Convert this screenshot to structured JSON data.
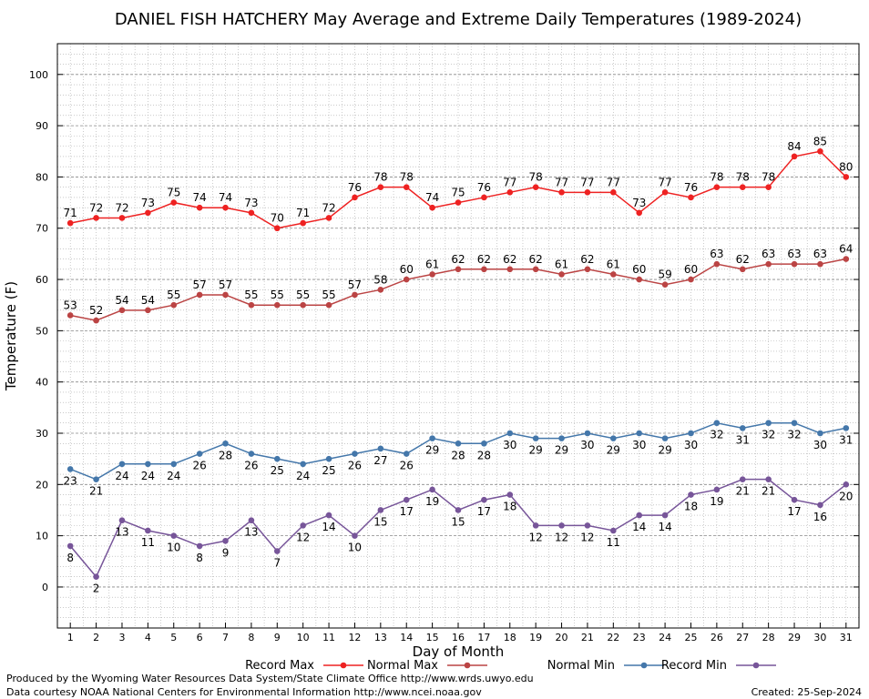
{
  "chart_data": {
    "type": "line",
    "title": "DANIEL FISH HATCHERY May Average and Extreme Daily Temperatures (1989-2024)",
    "xlabel": "Day of Month",
    "ylabel": "Temperature (F)",
    "x": [
      1,
      2,
      3,
      4,
      5,
      6,
      7,
      8,
      9,
      10,
      11,
      12,
      13,
      14,
      15,
      16,
      17,
      18,
      19,
      20,
      21,
      22,
      23,
      24,
      25,
      26,
      27,
      28,
      29,
      30,
      31
    ],
    "xlim": [
      0.5,
      31.5
    ],
    "ylim": [
      -8,
      106
    ],
    "yticks": [
      0,
      10,
      20,
      30,
      40,
      50,
      60,
      70,
      80,
      90,
      100
    ],
    "grid": true,
    "legend_position": "bottom",
    "series": [
      {
        "name": "Record Max",
        "color": "#ee2222",
        "label_pos": "above",
        "values": [
          71,
          72,
          72,
          73,
          75,
          74,
          74,
          73,
          70,
          71,
          72,
          76,
          78,
          78,
          74,
          75,
          76,
          77,
          78,
          77,
          77,
          77,
          73,
          77,
          76,
          78,
          78,
          78,
          84,
          85,
          80
        ]
      },
      {
        "name": "Normal Max",
        "color": "#bb4444",
        "label_pos": "above",
        "values": [
          53,
          52,
          54,
          54,
          55,
          57,
          57,
          55,
          55,
          55,
          55,
          57,
          58,
          60,
          61,
          62,
          62,
          62,
          62,
          61,
          62,
          61,
          60,
          59,
          60,
          63,
          62,
          63,
          63,
          63,
          64
        ]
      },
      {
        "name": "Normal Min",
        "color": "#4477aa",
        "label_pos": "below",
        "values": [
          23,
          21,
          24,
          24,
          24,
          26,
          28,
          26,
          25,
          24,
          25,
          26,
          27,
          26,
          29,
          28,
          28,
          30,
          29,
          29,
          30,
          29,
          30,
          29,
          30,
          32,
          31,
          32,
          32,
          30,
          31
        ]
      },
      {
        "name": "Record Min",
        "color": "#775599",
        "label_pos": "below",
        "values": [
          8,
          2,
          13,
          11,
          10,
          8,
          9,
          13,
          7,
          12,
          14,
          10,
          15,
          17,
          19,
          15,
          17,
          18,
          12,
          12,
          12,
          11,
          14,
          14,
          18,
          19,
          21,
          21,
          17,
          16,
          20
        ]
      }
    ]
  },
  "footer": {
    "producer": "Produced by the Wyoming Water Resources Data System/State Climate Office http://www.wrds.uwyo.edu",
    "courtesy": "Data courtesy NOAA National Centers for Environmental Information http://www.ncei.noaa.gov",
    "created": "Created:  25-Sep-2024"
  }
}
